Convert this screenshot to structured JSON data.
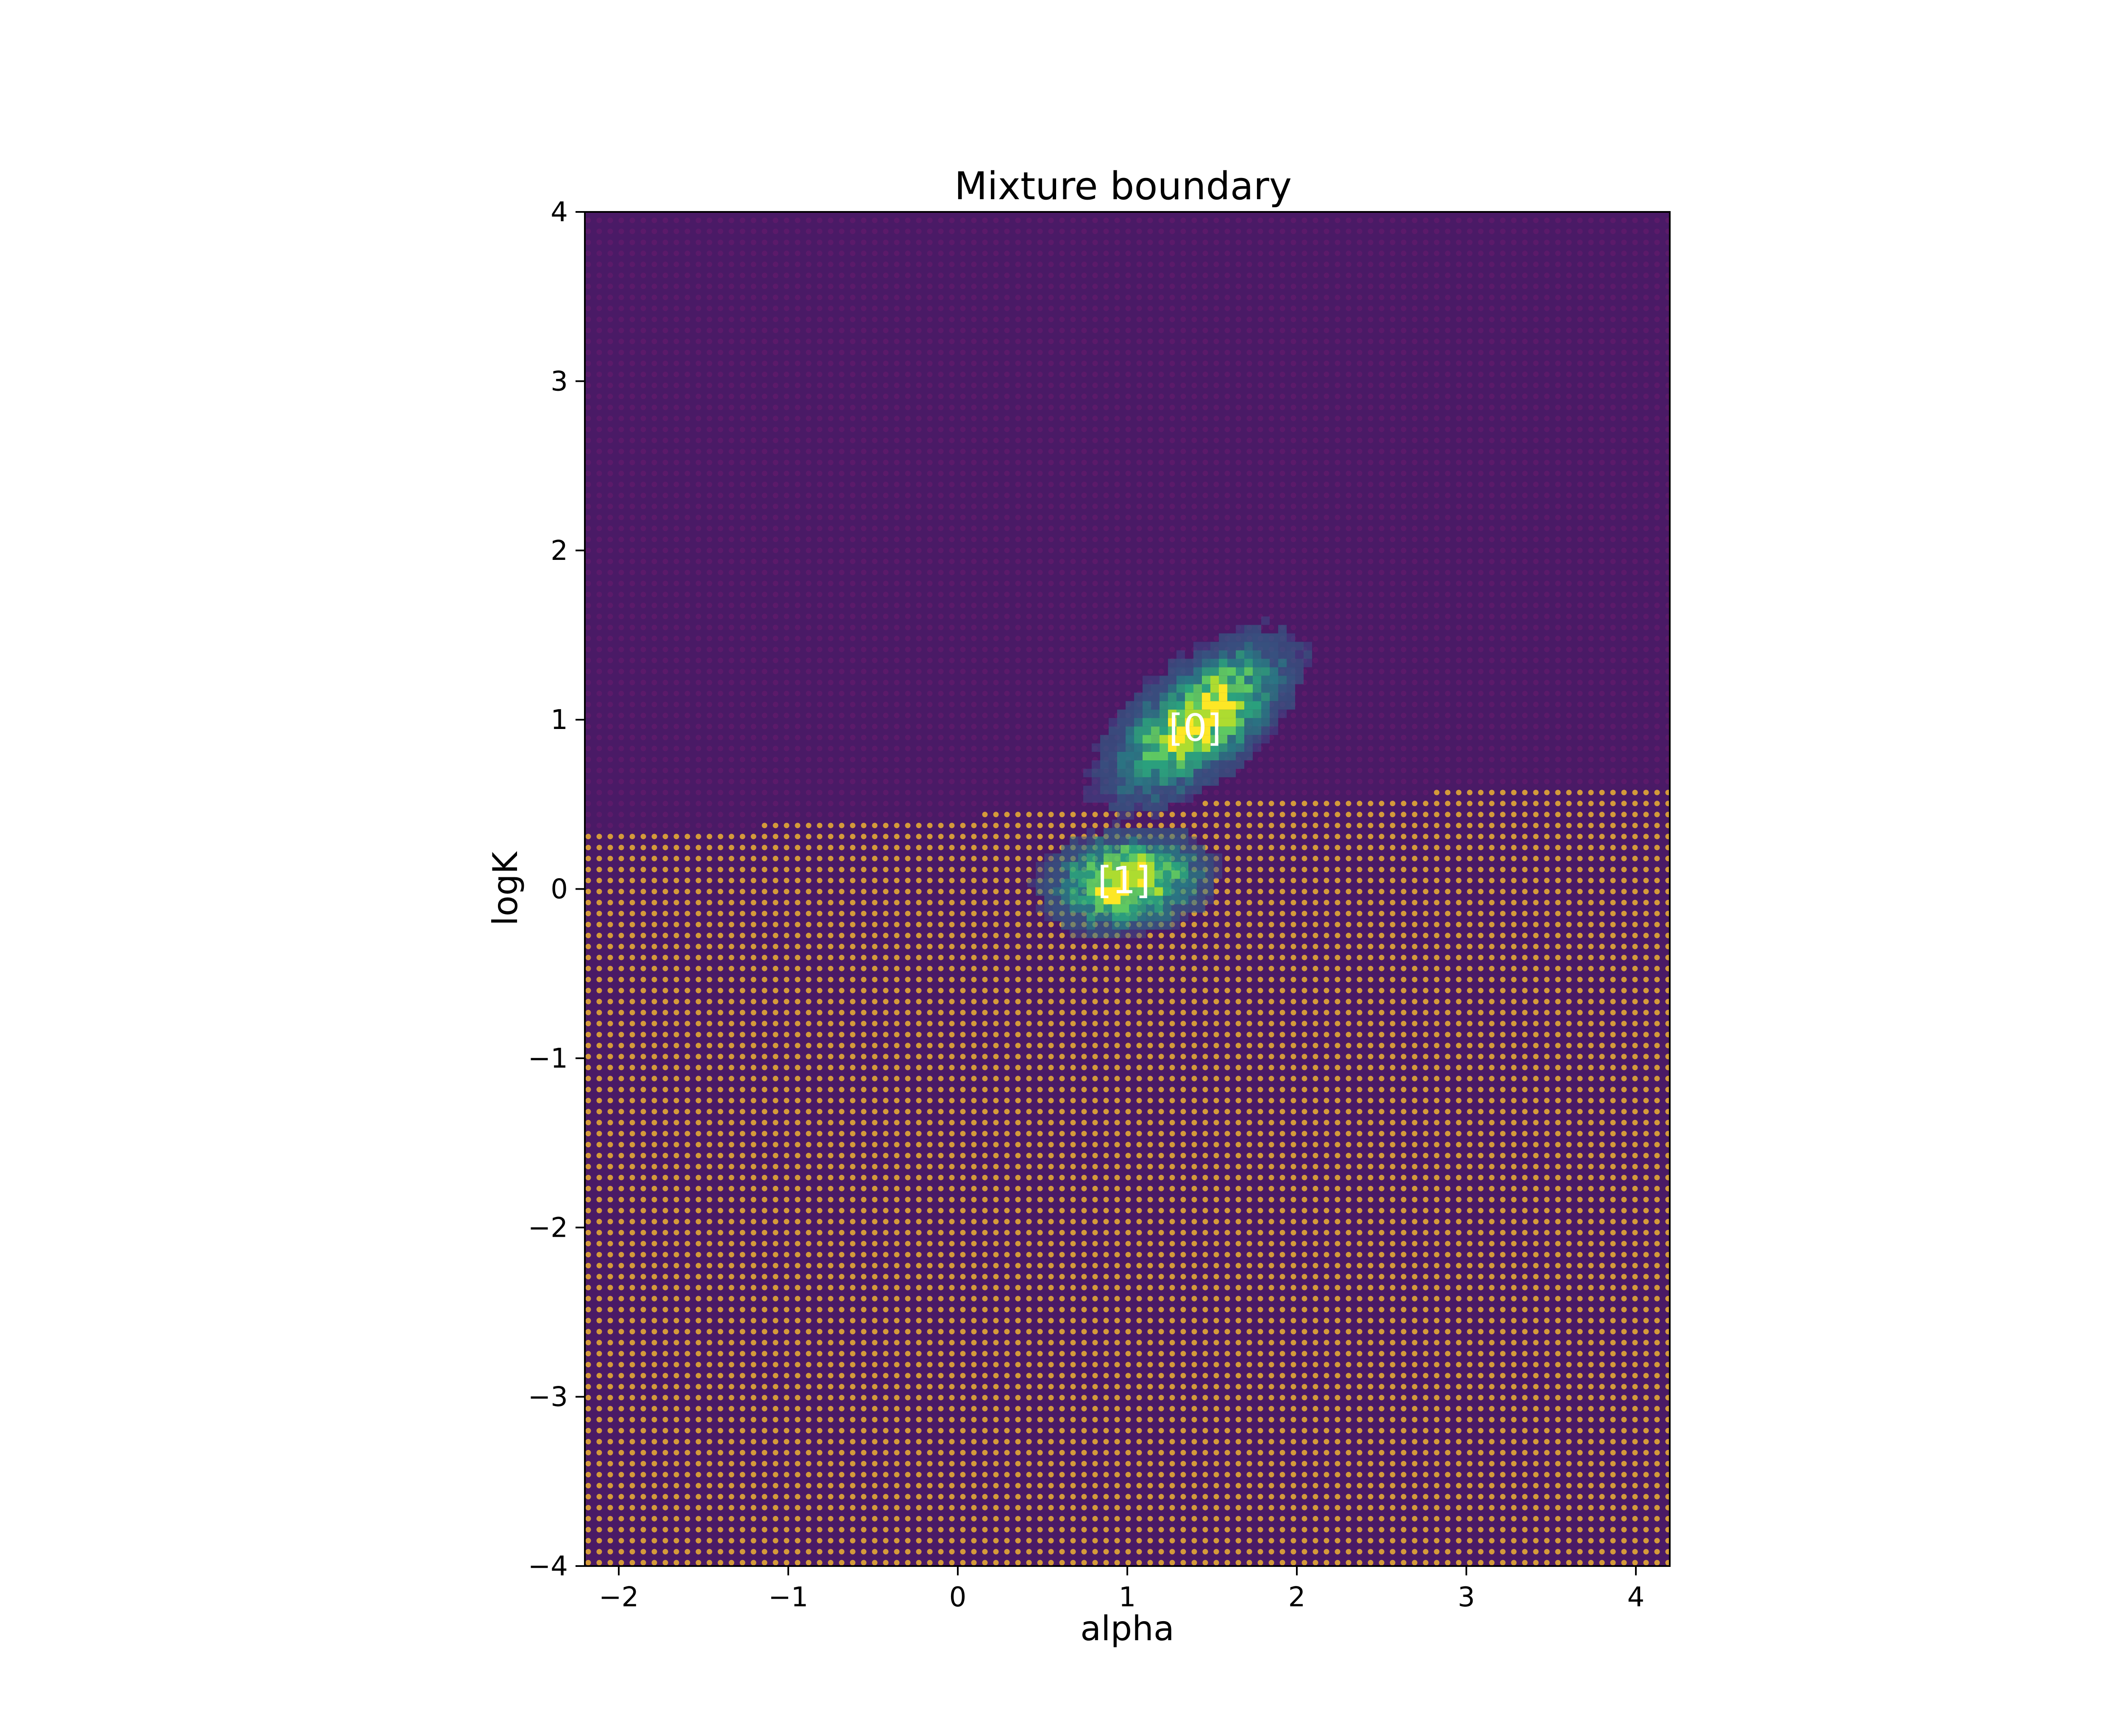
{
  "chart_data": {
    "type": "scatter",
    "title": "Mixture boundary",
    "xlabel": "alpha",
    "ylabel": "logK",
    "xlim": [
      -2.2,
      4.2
    ],
    "ylim": [
      -4,
      4
    ],
    "xticks": [
      -2,
      -1,
      0,
      1,
      2,
      3,
      4
    ],
    "yticks": [
      -4,
      -3,
      -2,
      -1,
      0,
      1,
      2,
      3,
      4
    ],
    "xtick_labels": [
      "−2",
      "−1",
      "0",
      "1",
      "2",
      "3",
      "4"
    ],
    "ytick_labels": [
      "−4",
      "−3",
      "−2",
      "−1",
      "0",
      "1",
      "2",
      "3",
      "4"
    ],
    "grid": false,
    "background_color": "#4a1a66",
    "series": [
      {
        "values": [],
        "color": "#5b1a6a"
      },
      {
        "values": [],
        "color": "#d49a3a"
      }
    ],
    "boundary": {
      "x": [
        -2.2,
        -1.2,
        -1.2,
        0.1,
        0.1,
        1.4,
        1.4,
        2.8,
        2.8,
        4.2
      ],
      "y": [
        0.36,
        0.36,
        0.42,
        0.42,
        0.47,
        0.47,
        0.52,
        0.52,
        0.57,
        0.62
      ]
    },
    "density_clusters": [
      {
        "label": "[0]",
        "center": [
          1.4,
          0.97
        ],
        "spread": [
          0.32,
          0.22
        ],
        "tilt": 0.55
      },
      {
        "label": "[1]",
        "center": [
          0.97,
          0.02
        ],
        "spread": [
          0.27,
          0.17
        ],
        "tilt": 0.1
      }
    ],
    "annotations": [
      {
        "text": "[0]",
        "x": 1.4,
        "y": 0.95
      },
      {
        "text": "[1]",
        "x": 0.98,
        "y": 0.05
      }
    ]
  }
}
